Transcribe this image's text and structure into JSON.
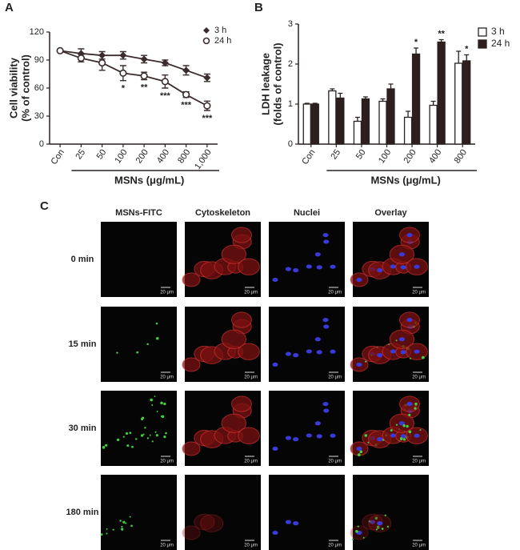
{
  "chart_data": [
    {
      "type": "line",
      "panel_label": "A",
      "ylabel": [
        "Cell viability",
        "(% of control)"
      ],
      "xlabel": "MSNs (μg/mL)",
      "categories": [
        "Con",
        "25",
        "50",
        "100",
        "200",
        "400",
        "800",
        "1,000"
      ],
      "series": [
        {
          "name": "3 h",
          "color": "#3b2d2d",
          "marker": "diamond",
          "values": [
            100,
            97,
            95,
            95,
            91,
            87,
            79,
            71
          ],
          "errors": [
            1,
            5,
            4,
            4,
            4,
            3,
            5,
            4
          ]
        },
        {
          "name": "24 h",
          "color": "#3b2d2d",
          "marker": "circle",
          "values": [
            100,
            92,
            87,
            76,
            73,
            67,
            53,
            41
          ],
          "errors": [
            1,
            4,
            8,
            8,
            4,
            7,
            3,
            5
          ],
          "annotations": [
            null,
            null,
            null,
            "*",
            "**",
            "***",
            "***",
            "***"
          ]
        }
      ],
      "ylim": [
        0,
        120
      ],
      "yticks": [
        0,
        30,
        60,
        90,
        120
      ],
      "legend": "top-right"
    },
    {
      "type": "bar",
      "panel_label": "B",
      "ylabel": [
        "LDH leakage",
        "(folds of control)"
      ],
      "xlabel": "MSNs (μg/mL)",
      "categories": [
        "Con",
        "25",
        "50",
        "100",
        "200",
        "400",
        "800"
      ],
      "series": [
        {
          "name": "3 h",
          "color": "#ffffff",
          "values": [
            1,
            1.33,
            0.57,
            1.07,
            0.67,
            0.97,
            2.02
          ],
          "errors": [
            0.02,
            0.05,
            0.1,
            0.06,
            0.15,
            0.1,
            0.3
          ]
        },
        {
          "name": "24 h",
          "color": "#2e1f1f",
          "values": [
            1,
            1.15,
            1.13,
            1.38,
            2.25,
            2.55,
            2.08
          ],
          "errors": [
            0.02,
            0.12,
            0.05,
            0.12,
            0.15,
            0.06,
            0.15
          ],
          "annotations": [
            null,
            null,
            null,
            null,
            "*",
            "**",
            "*"
          ]
        }
      ],
      "ylim": [
        0,
        3
      ],
      "yticks": [
        0,
        1,
        2,
        3
      ],
      "legend": "top-right"
    }
  ],
  "panel_c": {
    "panel_label": "C",
    "column_headers": [
      "MSNs-FITC",
      "Cytoskeleton",
      "Nuclei",
      "Overlay"
    ],
    "row_labels": [
      "0 min",
      "15 min",
      "30 min",
      "180 min"
    ],
    "scale_bar": "20 μm"
  }
}
